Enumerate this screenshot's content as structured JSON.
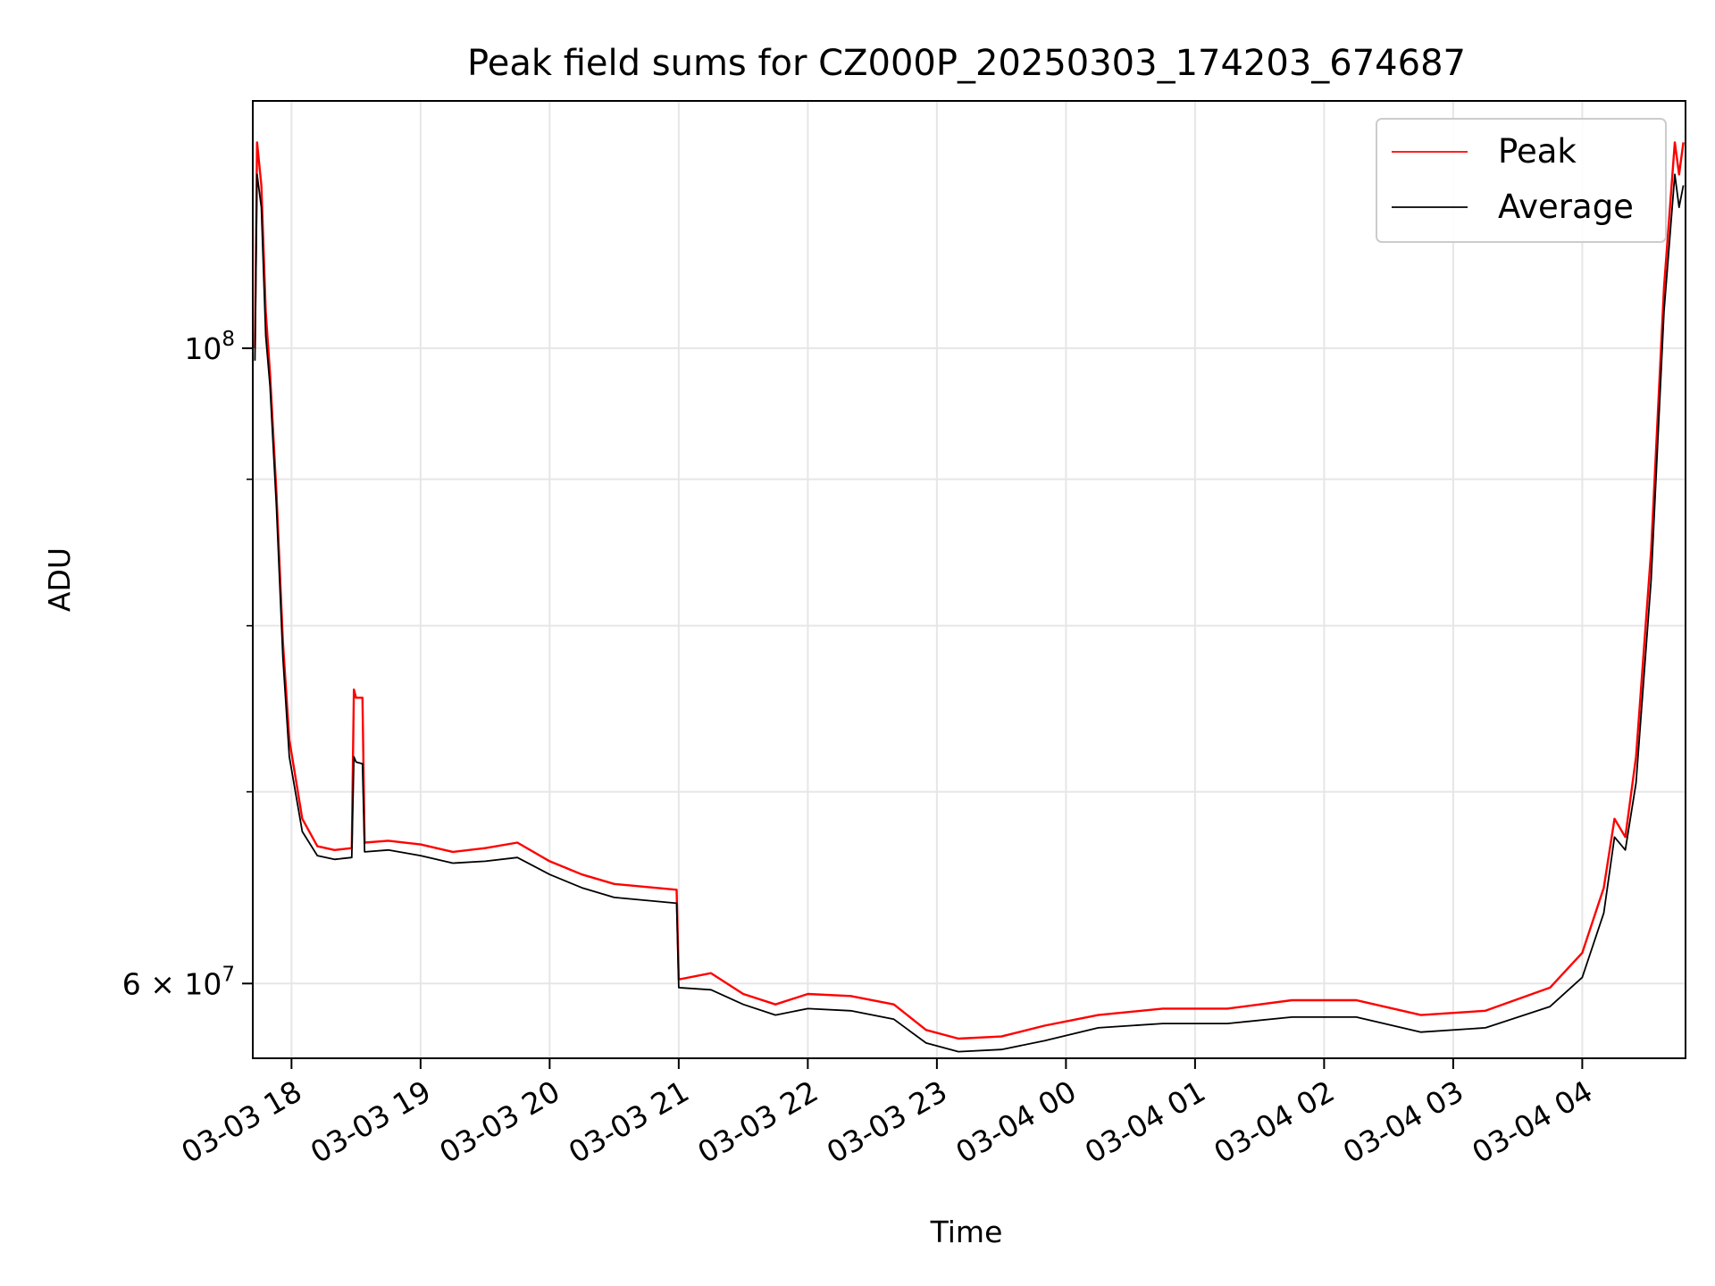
{
  "chart_data": {
    "type": "line",
    "title": "Peak field sums for CZ000P_20250303_174203_674687",
    "xlabel": "Time",
    "ylabel": "ADU",
    "x_axis": {
      "kind": "date",
      "range": [
        "2025-03-03T17:42",
        "2025-03-04T04:48"
      ],
      "ticks": [
        {
          "t": "2025-03-03T18:00",
          "label": "03-03 18"
        },
        {
          "t": "2025-03-03T19:00",
          "label": "03-03 19"
        },
        {
          "t": "2025-03-03T20:00",
          "label": "03-03 20"
        },
        {
          "t": "2025-03-03T21:00",
          "label": "03-03 21"
        },
        {
          "t": "2025-03-03T22:00",
          "label": "03-03 22"
        },
        {
          "t": "2025-03-03T23:00",
          "label": "03-03 23"
        },
        {
          "t": "2025-03-04T00:00",
          "label": "03-04 00"
        },
        {
          "t": "2025-03-04T01:00",
          "label": "03-04 01"
        },
        {
          "t": "2025-03-04T02:00",
          "label": "03-04 02"
        },
        {
          "t": "2025-03-04T03:00",
          "label": "03-04 03"
        },
        {
          "t": "2025-03-04T04:00",
          "label": "03-04 04"
        }
      ]
    },
    "y_axis": {
      "scale": "log",
      "range": [
        56500000,
        122000000
      ],
      "major_ticks": [
        {
          "value": 100000000,
          "label": "10",
          "exp": "8"
        },
        {
          "value": 60000000,
          "label": "6 × 10",
          "exp": "7"
        }
      ],
      "minor_ticks": [
        70000000,
        80000000,
        90000000
      ]
    },
    "grid": true,
    "legend": {
      "placement": "top-right",
      "entries": [
        "Peak",
        "Average"
      ]
    },
    "series": [
      {
        "name": "Peak",
        "color": "#ff0000",
        "points": [
          [
            "2025-03-03T17:43",
            100000000
          ],
          [
            "2025-03-03T17:44",
            118000000
          ],
          [
            "2025-03-03T17:46",
            114000000
          ],
          [
            "2025-03-03T17:48",
            103000000
          ],
          [
            "2025-03-03T17:50",
            98000000
          ],
          [
            "2025-03-03T17:53",
            89000000
          ],
          [
            "2025-03-03T17:56",
            79000000
          ],
          [
            "2025-03-03T17:59",
            73000000
          ],
          [
            "2025-03-03T18:05",
            68500000
          ],
          [
            "2025-03-03T18:12",
            67000000
          ],
          [
            "2025-03-03T18:20",
            66800000
          ],
          [
            "2025-03-03T18:28",
            66900000
          ],
          [
            "2025-03-03T18:29",
            76000000
          ],
          [
            "2025-03-03T18:30",
            75500000
          ],
          [
            "2025-03-03T18:33",
            75500000
          ],
          [
            "2025-03-03T18:34",
            67200000
          ],
          [
            "2025-03-03T18:45",
            67300000
          ],
          [
            "2025-03-03T19:00",
            67100000
          ],
          [
            "2025-03-03T19:15",
            66700000
          ],
          [
            "2025-03-03T19:30",
            66900000
          ],
          [
            "2025-03-03T19:45",
            67200000
          ],
          [
            "2025-03-03T20:00",
            66200000
          ],
          [
            "2025-03-03T20:15",
            65500000
          ],
          [
            "2025-03-03T20:30",
            65000000
          ],
          [
            "2025-03-03T20:59",
            64700000
          ],
          [
            "2025-03-03T21:00",
            60200000
          ],
          [
            "2025-03-03T21:15",
            60500000
          ],
          [
            "2025-03-03T21:30",
            59500000
          ],
          [
            "2025-03-03T21:45",
            59000000
          ],
          [
            "2025-03-03T22:00",
            59500000
          ],
          [
            "2025-03-03T22:20",
            59400000
          ],
          [
            "2025-03-03T22:40",
            59000000
          ],
          [
            "2025-03-03T22:55",
            57800000
          ],
          [
            "2025-03-03T23:10",
            57400000
          ],
          [
            "2025-03-03T23:30",
            57500000
          ],
          [
            "2025-03-03T23:50",
            58000000
          ],
          [
            "2025-03-04T00:15",
            58500000
          ],
          [
            "2025-03-04T00:45",
            58800000
          ],
          [
            "2025-03-04T01:15",
            58800000
          ],
          [
            "2025-03-04T01:45",
            59200000
          ],
          [
            "2025-03-04T02:15",
            59200000
          ],
          [
            "2025-03-04T02:45",
            58500000
          ],
          [
            "2025-03-04T03:15",
            58700000
          ],
          [
            "2025-03-04T03:45",
            59800000
          ],
          [
            "2025-03-04T04:00",
            61500000
          ],
          [
            "2025-03-04T04:10",
            64800000
          ],
          [
            "2025-03-04T04:15",
            68500000
          ],
          [
            "2025-03-04T04:20",
            67500000
          ],
          [
            "2025-03-04T04:25",
            72000000
          ],
          [
            "2025-03-04T04:32",
            85000000
          ],
          [
            "2025-03-04T04:38",
            105000000
          ],
          [
            "2025-03-04T04:43",
            118000000
          ],
          [
            "2025-03-04T04:45",
            115000000
          ],
          [
            "2025-03-04T04:47",
            118000000
          ]
        ]
      },
      {
        "name": "Average",
        "color": "#000000",
        "points": [
          [
            "2025-03-03T17:43",
            99000000
          ],
          [
            "2025-03-03T17:44",
            115000000
          ],
          [
            "2025-03-03T17:46",
            112000000
          ],
          [
            "2025-03-03T17:48",
            101000000
          ],
          [
            "2025-03-03T17:50",
            97000000
          ],
          [
            "2025-03-03T17:53",
            88000000
          ],
          [
            "2025-03-03T17:56",
            78000000
          ],
          [
            "2025-03-03T17:59",
            72000000
          ],
          [
            "2025-03-03T18:05",
            67800000
          ],
          [
            "2025-03-03T18:12",
            66500000
          ],
          [
            "2025-03-03T18:20",
            66300000
          ],
          [
            "2025-03-03T18:28",
            66400000
          ],
          [
            "2025-03-03T18:29",
            72000000
          ],
          [
            "2025-03-03T18:30",
            71700000
          ],
          [
            "2025-03-03T18:33",
            71600000
          ],
          [
            "2025-03-03T18:34",
            66700000
          ],
          [
            "2025-03-03T18:45",
            66800000
          ],
          [
            "2025-03-03T19:00",
            66500000
          ],
          [
            "2025-03-03T19:15",
            66100000
          ],
          [
            "2025-03-03T19:30",
            66200000
          ],
          [
            "2025-03-03T19:45",
            66400000
          ],
          [
            "2025-03-03T20:00",
            65500000
          ],
          [
            "2025-03-03T20:15",
            64800000
          ],
          [
            "2025-03-03T20:30",
            64300000
          ],
          [
            "2025-03-03T20:59",
            64000000
          ],
          [
            "2025-03-03T21:00",
            59800000
          ],
          [
            "2025-03-03T21:15",
            59700000
          ],
          [
            "2025-03-03T21:30",
            59000000
          ],
          [
            "2025-03-03T21:45",
            58500000
          ],
          [
            "2025-03-03T22:00",
            58800000
          ],
          [
            "2025-03-03T22:20",
            58700000
          ],
          [
            "2025-03-03T22:40",
            58300000
          ],
          [
            "2025-03-03T22:55",
            57200000
          ],
          [
            "2025-03-03T23:10",
            56800000
          ],
          [
            "2025-03-03T23:30",
            56900000
          ],
          [
            "2025-03-03T23:50",
            57300000
          ],
          [
            "2025-03-04T00:15",
            57900000
          ],
          [
            "2025-03-04T00:45",
            58100000
          ],
          [
            "2025-03-04T01:15",
            58100000
          ],
          [
            "2025-03-04T01:45",
            58400000
          ],
          [
            "2025-03-04T02:15",
            58400000
          ],
          [
            "2025-03-04T02:45",
            57700000
          ],
          [
            "2025-03-04T03:15",
            57900000
          ],
          [
            "2025-03-04T03:45",
            58900000
          ],
          [
            "2025-03-04T04:00",
            60300000
          ],
          [
            "2025-03-04T04:10",
            63500000
          ],
          [
            "2025-03-04T04:15",
            67500000
          ],
          [
            "2025-03-04T04:20",
            66800000
          ],
          [
            "2025-03-04T04:25",
            70500000
          ],
          [
            "2025-03-04T04:32",
            83000000
          ],
          [
            "2025-03-04T04:38",
            103000000
          ],
          [
            "2025-03-04T04:43",
            115000000
          ],
          [
            "2025-03-04T04:45",
            112000000
          ],
          [
            "2025-03-04T04:47",
            114000000
          ]
        ]
      }
    ]
  }
}
